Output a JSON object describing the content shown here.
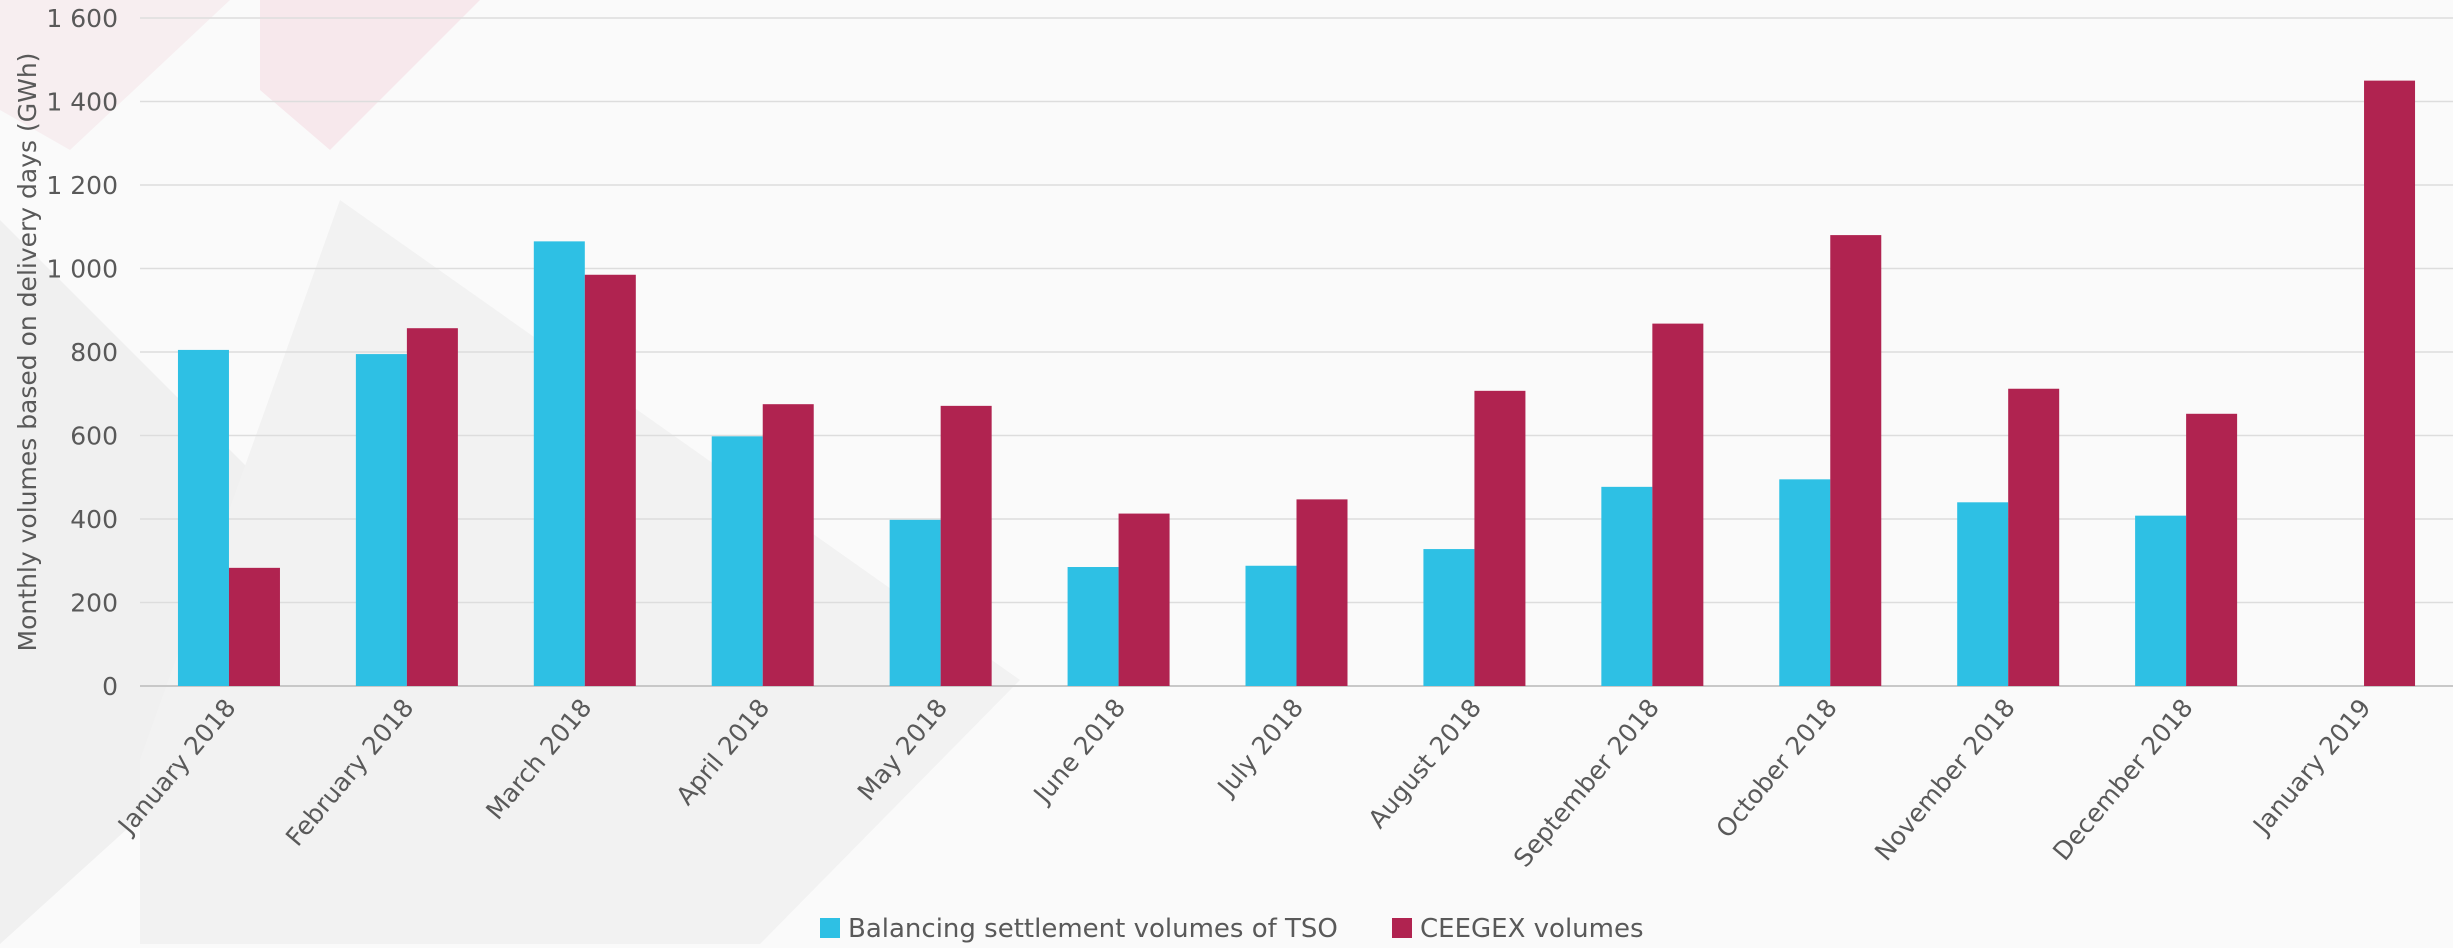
{
  "chart_data": {
    "type": "bar",
    "title": "",
    "xlabel": "",
    "ylabel": "Monthly volumes based on delivery days (GWh)",
    "ylim": [
      0,
      1600
    ],
    "yticks": [
      0,
      200,
      400,
      600,
      800,
      1000,
      1200,
      1400,
      1600
    ],
    "ytick_labels": [
      "0",
      "200",
      "400",
      "600",
      "800",
      "1 000",
      "1 200",
      "1 400",
      "1 600"
    ],
    "grid": true,
    "legend_position": "bottom-center",
    "categories": [
      "January 2018",
      "February 2018",
      "March 2018",
      "April 2018",
      "May 2018",
      "June 2018",
      "July 2018",
      "August 2018",
      "September 2018",
      "October 2018",
      "November 2018",
      "December 2018",
      "January 2019"
    ],
    "series": [
      {
        "name": "Balancing settlement volumes of TSO",
        "color": "#2ec0e4",
        "values": [
          805,
          795,
          1065,
          598,
          398,
          285,
          288,
          328,
          477,
          495,
          440,
          408,
          null
        ]
      },
      {
        "name": "CEEGEX volumes",
        "color": "#b02350",
        "values": [
          283,
          857,
          985,
          675,
          671,
          413,
          447,
          707,
          868,
          1080,
          712,
          652,
          1450
        ]
      }
    ]
  }
}
